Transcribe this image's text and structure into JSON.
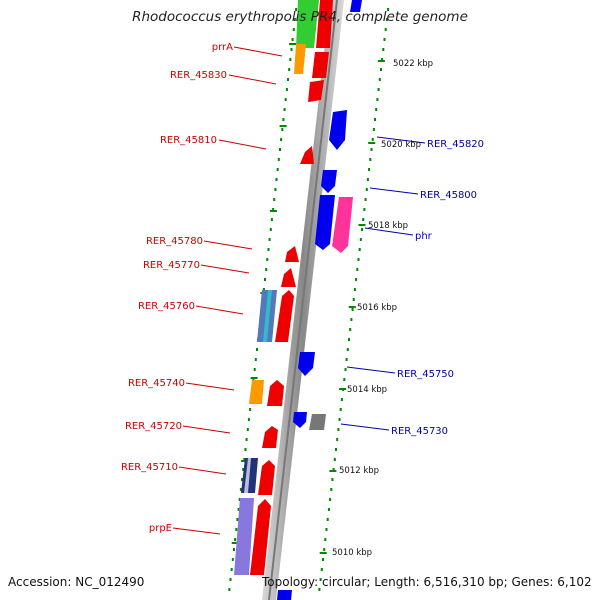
{
  "title": "Rhodococcus erythropolis PR4, complete genome",
  "footer": {
    "accession": "Accession: NC_012490",
    "summary": "Topology: circular; Length: 6,516,310 bp; Genes: 6,102"
  },
  "kbp_labels": [
    "5022 kbp",
    "5020 kbp",
    "5018 kbp",
    "5016 kbp",
    "5014 kbp",
    "5012 kbp",
    "5010 kbp"
  ],
  "left_labels": [
    "prrA",
    "RER_45830",
    "RER_45810",
    "RER_45780",
    "RER_45770",
    "RER_45760",
    "RER_45740",
    "RER_45720",
    "RER_45710",
    "prpE"
  ],
  "right_labels": [
    "RER_45820",
    "RER_45800",
    "phr",
    "RER_45750",
    "RER_45730"
  ],
  "colors": {
    "forward_gene": "#ee0000",
    "reverse_gene": "#0000ee",
    "other_gene_green": "#33cc33",
    "other_gene_orange": "#ff9900",
    "other_gene_pink": "#ff3399",
    "other_gene_grey": "#777777",
    "other_gene_purple": "#8877dd",
    "backbone": "#999999",
    "tick": "#008800",
    "label_left": "#cc0000",
    "label_right": "#0000aa"
  }
}
